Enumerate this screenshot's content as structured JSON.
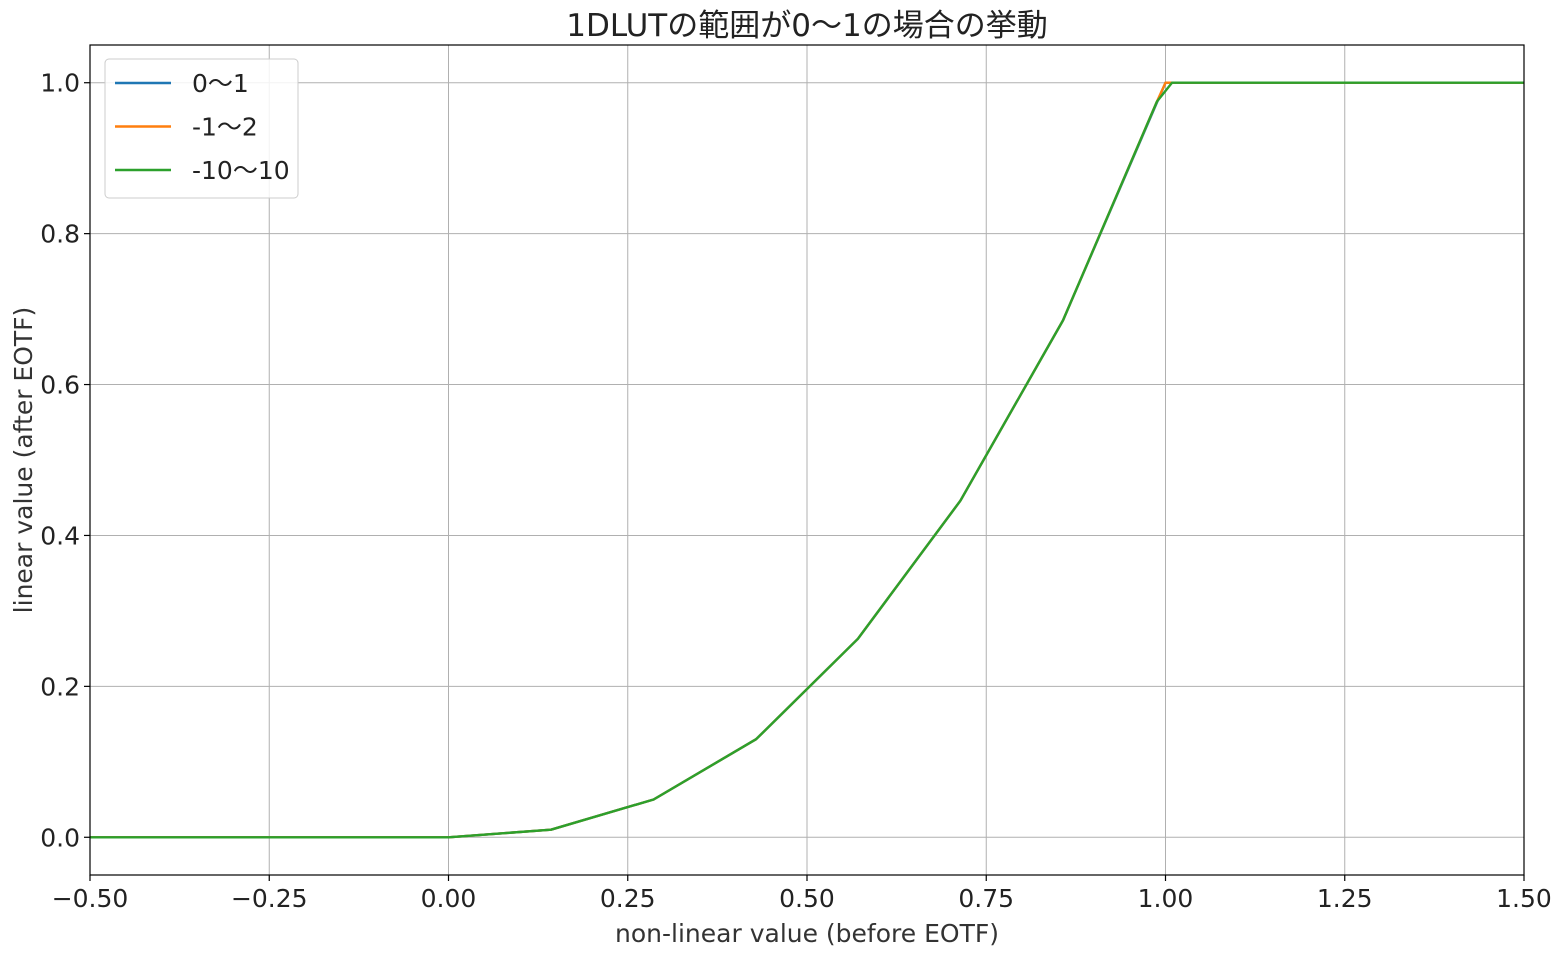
{
  "chart_data": {
    "type": "line",
    "title": "1DLUTの範囲が0〜1の場合の挙動",
    "xlabel": "non-linear value (before EOTF)",
    "ylabel": "linear value (after EOTF)",
    "xlim": [
      -0.5,
      1.5
    ],
    "ylim": [
      -0.05,
      1.05
    ],
    "grid": true,
    "legend_position": "top-left",
    "x_ticks": [
      -0.5,
      -0.25,
      0.0,
      0.25,
      0.5,
      0.75,
      1.0,
      1.25,
      1.5
    ],
    "x_tick_labels": [
      "−0.50",
      "−0.25",
      "0.00",
      "0.25",
      "0.50",
      "0.75",
      "1.00",
      "1.25",
      "1.50"
    ],
    "y_ticks": [
      0.0,
      0.2,
      0.4,
      0.6,
      0.8,
      1.0
    ],
    "y_tick_labels": [
      "0.0",
      "0.2",
      "0.4",
      "0.6",
      "0.8",
      "1.0"
    ],
    "series": [
      {
        "name": "0〜1",
        "color": "#1f77b4",
        "x": [
          -0.5,
          0.0,
          0.143,
          0.286,
          0.429,
          0.571,
          0.714,
          0.857,
          1.0,
          1.5
        ],
        "y": [
          0.0,
          0.0,
          0.01,
          0.05,
          0.13,
          0.263,
          0.446,
          0.685,
          1.0,
          1.0
        ]
      },
      {
        "name": "-1〜2",
        "color": "#ff7f0e",
        "x": [
          -0.5,
          0.0,
          0.143,
          0.286,
          0.429,
          0.571,
          0.714,
          0.857,
          0.988,
          1.0,
          1.5
        ],
        "y": [
          0.0,
          0.0,
          0.01,
          0.05,
          0.13,
          0.263,
          0.446,
          0.685,
          0.975,
          1.0,
          1.0
        ]
      },
      {
        "name": "-10〜10",
        "color": "#2ca02c",
        "x": [
          -0.5,
          0.0,
          0.143,
          0.286,
          0.429,
          0.571,
          0.714,
          0.857,
          0.988,
          1.009,
          1.5
        ],
        "y": [
          0.0,
          0.0,
          0.01,
          0.05,
          0.13,
          0.263,
          0.446,
          0.685,
          0.975,
          1.0,
          1.0
        ]
      }
    ]
  }
}
